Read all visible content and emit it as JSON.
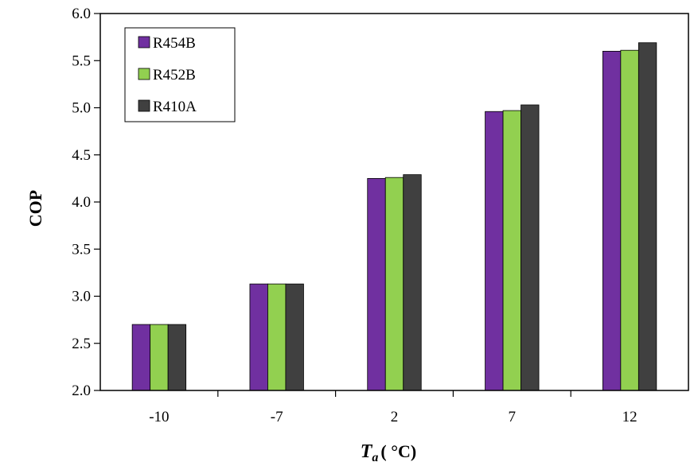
{
  "chart_data": {
    "type": "bar",
    "categories": [
      "-10",
      "-7",
      "2",
      "7",
      "12"
    ],
    "series": [
      {
        "name": "R454B",
        "color": "#7030a0",
        "values": [
          2.7,
          3.13,
          4.25,
          4.96,
          5.6
        ]
      },
      {
        "name": "R452B",
        "color": "#92d050",
        "values": [
          2.7,
          3.13,
          4.26,
          4.97,
          5.61
        ]
      },
      {
        "name": "R410A",
        "color": "#404040",
        "values": [
          2.7,
          3.13,
          4.29,
          5.03,
          5.69
        ]
      }
    ],
    "ylabel": "COP",
    "xlabel_main": "T",
    "xlabel_sub": "a",
    "xlabel_unit": "( °C)",
    "ylim": [
      2.0,
      6.0
    ],
    "yticks": [
      "2.0",
      "2.5",
      "3.0",
      "3.5",
      "4.0",
      "4.5",
      "5.0",
      "5.5",
      "6.0"
    ],
    "grid": false,
    "legend_position": "top-left"
  }
}
